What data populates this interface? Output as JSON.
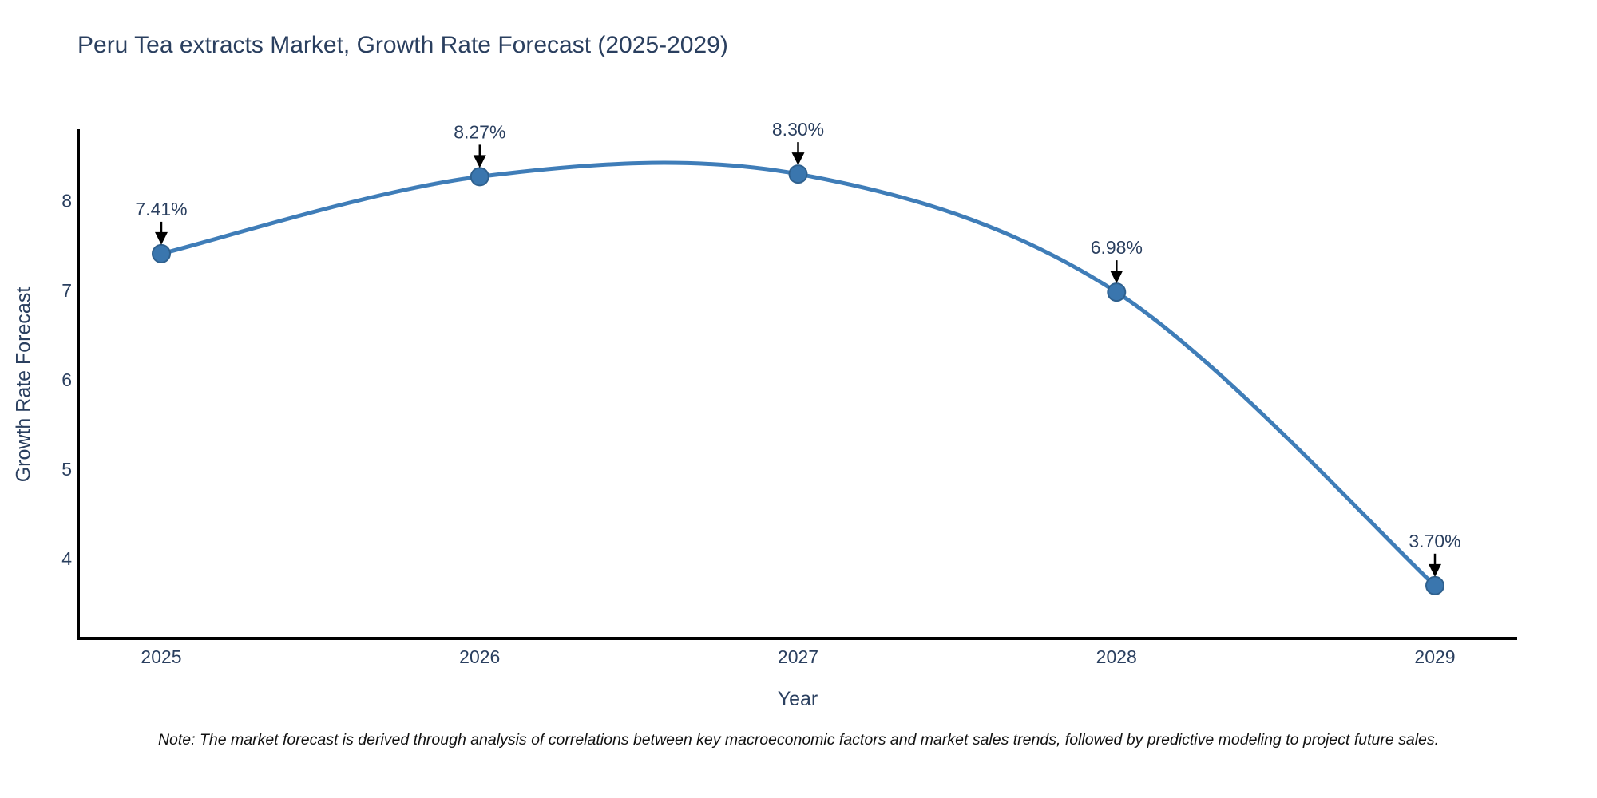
{
  "title": "Peru Tea extracts Market, Growth Rate Forecast (2025-2029)",
  "note": "Note: The market forecast is derived through analysis of correlations between key macroeconomic factors and market sales trends, followed by predictive modeling to project future sales.",
  "chart_data": {
    "type": "line",
    "title": "Peru Tea extracts Market, Growth Rate Forecast (2025-2029)",
    "categories": [
      "2025",
      "2026",
      "2027",
      "2028",
      "2029"
    ],
    "values": [
      7.41,
      8.27,
      8.3,
      6.98,
      3.7
    ],
    "point_labels": [
      "7.41%",
      "8.27%",
      "8.30%",
      "6.98%",
      "3.70%"
    ],
    "xlabel": "Year",
    "ylabel": "Growth Rate Forecast",
    "yticks": [
      4,
      5,
      6,
      7,
      8
    ],
    "ylim": [
      3.11,
      8.8
    ],
    "line_shape": "spline",
    "grid": false,
    "legend": "none",
    "colors": {
      "line": "#3f7db8",
      "marker": "#3a76ae",
      "marker_edge": "#2f618f",
      "arrow": "#000000",
      "axis": "#000000",
      "text": "#2a3f5f"
    }
  }
}
